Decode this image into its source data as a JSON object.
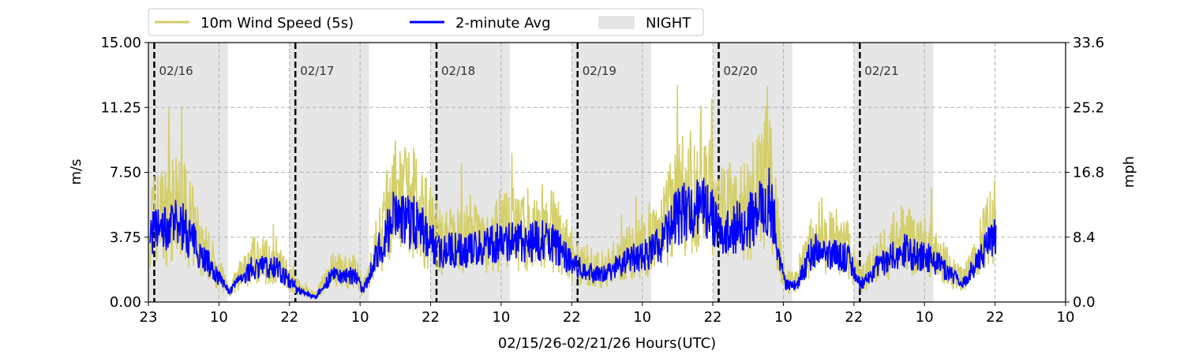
{
  "chart_data": {
    "type": "line",
    "xlabel": "02/15/26-02/21/26  Hours(UTC)",
    "ylabel_left": "m/s",
    "ylabel_right": "mph",
    "xlim_hours": [
      0,
      156
    ],
    "ylim": [
      0,
      15
    ],
    "ylim_right": [
      0,
      33.6
    ],
    "yticks_left": [
      "0.00",
      "3.75",
      "7.50",
      "11.25",
      "15.00"
    ],
    "yticks_right": [
      "0.0",
      "8.4",
      "16.8",
      "25.2",
      "33.6"
    ],
    "xtick_labels": [
      "23",
      "10",
      "22",
      "10",
      "22",
      "10",
      "22",
      "10",
      "22",
      "10",
      "22",
      "10",
      "22",
      "10"
    ],
    "xtick_step_hours": 12,
    "grid": true,
    "legend": {
      "placement": "top-left",
      "entries": [
        "10m Wind Speed (5s)",
        "2-minute Avg",
        "NIGHT"
      ]
    },
    "colors": {
      "gust": "#d4cf6a",
      "avg": "#0000ff",
      "night": "#e6e6e6"
    },
    "night_periods_hours": [
      [
        0,
        13.5
      ],
      [
        24,
        37.5
      ],
      [
        48,
        61.5
      ],
      [
        72,
        85.5
      ],
      [
        96,
        109.5
      ],
      [
        120,
        133.5
      ]
    ],
    "date_markers": [
      {
        "hour": 1,
        "label": "02/16"
      },
      {
        "hour": 25,
        "label": "02/17"
      },
      {
        "hour": 49,
        "label": "02/18"
      },
      {
        "hour": 73,
        "label": "02/19"
      },
      {
        "hour": 97,
        "label": "02/20"
      },
      {
        "hour": 121,
        "label": "02/21"
      }
    ],
    "series": [
      {
        "name": "2-minute Avg",
        "x": [
          0.3,
          5.6,
          9.7,
          13.7,
          17.7,
          21.7,
          25.8,
          28.5,
          31.1,
          35.2,
          36.5,
          39.2,
          41.9,
          45.9,
          49.3,
          55.3,
          60.7,
          68.7,
          72.8,
          76.8,
          82.1,
          86.2,
          90.2,
          94.2,
          98.3,
          103.6,
          105.6,
          108.3,
          110.3,
          113,
          119,
          121.1,
          123.8,
          127.8,
          133.2,
          138.5,
          144.2
        ],
        "y": [
          4,
          4.5,
          2.5,
          0.6,
          2,
          2,
          0.6,
          0.3,
          1.5,
          1.5,
          0.6,
          3,
          5,
          4.5,
          3,
          3,
          3.5,
          3.5,
          2,
          1.5,
          2.5,
          3,
          5,
          5.5,
          4,
          5,
          6,
          1,
          1,
          3,
          2.5,
          1,
          2,
          3,
          2.5,
          1,
          4
        ]
      },
      {
        "name": "10m Wind Speed (5s)",
        "note_peak": 13.6
      }
    ]
  }
}
